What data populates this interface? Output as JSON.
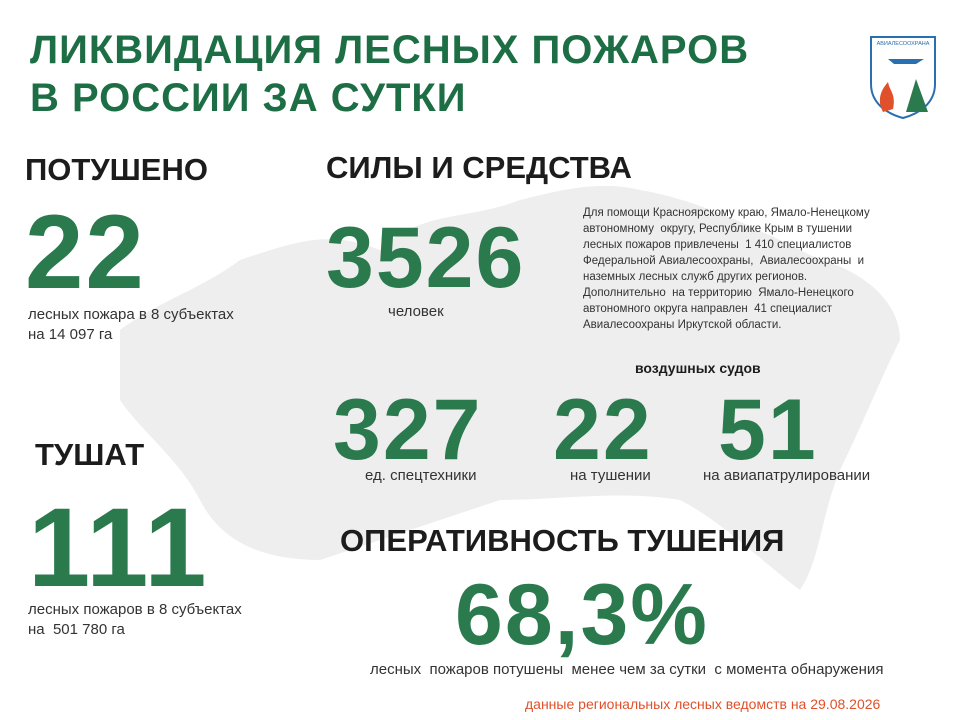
{
  "header": {
    "title_lines": [
      "ЛИКВИДАЦИЯ ЛЕСНЫХ ПОЖАРОВ",
      "В РОССИИ ЗА СУТКИ"
    ],
    "logo_text": "АВИАЛЕСООХРАНА"
  },
  "extinguished": {
    "heading": "ПОТУШЕНО",
    "number": "22",
    "lines": [
      "лесных пожара в 8 субъектах",
      "на 14 097 га"
    ]
  },
  "forces": {
    "heading": "СИЛЫ И СРЕДСТВА",
    "people": {
      "number": "3526",
      "label": "человек"
    },
    "note_lines": [
      "Для помощи Красноярскому краю, Ямало-Ненецкому",
      "автономному  округу, Республике Крым в тушении",
      "лесных пожаров привлечены  1 410 специалистов",
      "Федеральной Авиалесоохраны,  Авиалесоохраны  и",
      "наземных лесных служб других регионов.",
      "Дополнительно  на территорию  Ямало-Ненецкого",
      "автономного округа направлен  41 специалист",
      "Авиалесоохраны Иркутской области."
    ],
    "equipment": {
      "number": "327",
      "label": "ед. спецтехники"
    },
    "aircraft_heading": "воздушных судов",
    "aircraft_fighting": {
      "number": "22",
      "label": "на тушении"
    },
    "aircraft_patrol": {
      "number": "51",
      "label": "на авиапатрулировании"
    }
  },
  "fighting": {
    "heading": "ТУШАТ",
    "number": "111",
    "lines": [
      "лесных пожаров в 8 субъектах",
      "на  501 780 га"
    ]
  },
  "efficiency": {
    "heading": "ОПЕРАТИВНОСТЬ ТУШЕНИЯ",
    "number": "68,3%",
    "caption": "лесных  пожаров потушены  менее чем за сутки  с момента обнаружения"
  },
  "footer": "данные региональных лесных ведомств на 29.08.2026"
}
